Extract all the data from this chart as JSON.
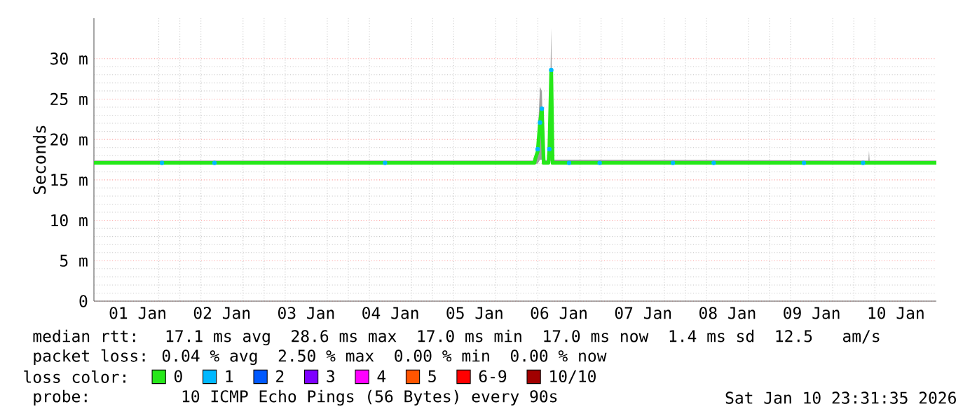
{
  "chart_data": {
    "type": "line",
    "ylabel": "Seconds",
    "xlim": [
      "2025-12-31T23:31",
      "2026-01-10T23:31"
    ],
    "xticks": [
      {
        "value": "2026-01-01T12:00",
        "label": "01 Jan"
      },
      {
        "value": "2026-01-02T12:00",
        "label": "02 Jan"
      },
      {
        "value": "2026-01-03T12:00",
        "label": "03 Jan"
      },
      {
        "value": "2026-01-04T12:00",
        "label": "04 Jan"
      },
      {
        "value": "2026-01-05T12:00",
        "label": "05 Jan"
      },
      {
        "value": "2026-01-06T12:00",
        "label": "06 Jan"
      },
      {
        "value": "2026-01-07T12:00",
        "label": "07 Jan"
      },
      {
        "value": "2026-01-08T12:00",
        "label": "08 Jan"
      },
      {
        "value": "2026-01-09T12:00",
        "label": "09 Jan"
      },
      {
        "value": "2026-01-10T12:00",
        "label": "10 Jan"
      }
    ],
    "ylim": [
      0,
      35
    ],
    "yticks": [
      {
        "value": 0,
        "label": "0"
      },
      {
        "value": 5,
        "label": "5 m"
      },
      {
        "value": 10,
        "label": "10 m"
      },
      {
        "value": 15,
        "label": "15 m"
      },
      {
        "value": 20,
        "label": "20 m"
      },
      {
        "value": 25,
        "label": "25 m"
      },
      {
        "value": 30,
        "label": "30 m"
      }
    ],
    "grid": true,
    "legend": "bottom",
    "legend_title": "loss color:",
    "marker": "none",
    "series": [
      {
        "name": "0",
        "color": "#26e81a",
        "x": [
          "2025-12-31T23:31",
          "2026-01-06T05:00",
          "2026-01-06T05:15",
          "2026-01-06T05:56",
          "2026-01-06T06:36",
          "2026-01-06T07:08",
          "2026-01-06T07:39",
          "2026-01-06T09:00",
          "2026-01-06T09:16",
          "2026-01-06T09:48",
          "2026-01-06T10:12",
          "2026-01-10T04:10",
          "2026-01-10T04:20",
          "2026-01-10T04:30",
          "2026-01-10T23:31"
        ],
        "values": [
          17.1,
          17.1,
          17.6,
          18.5,
          22.1,
          23.8,
          17.1,
          17.1,
          18.8,
          28.6,
          17.1,
          17.1,
          17.1,
          17.1,
          17.1
        ],
        "lower": [
          17.0,
          17.0,
          17.0,
          17.0,
          17.5,
          17.5,
          17.0,
          17.0,
          17.0,
          17.5,
          17.0,
          17.0,
          17.0,
          17.0,
          17.0
        ],
        "upper": [
          17.4,
          17.4,
          17.8,
          20.0,
          26.5,
          26.0,
          17.5,
          17.4,
          19.0,
          33.8,
          17.5,
          17.4,
          18.6,
          17.4,
          17.4
        ]
      },
      {
        "name": "1",
        "color": "#00b8ff",
        "type": "scatter",
        "x": [
          "2026-01-01T18:54",
          "2026-01-02T09:52",
          "2026-01-04T10:27",
          "2026-01-06T05:56",
          "2026-01-06T06:36",
          "2026-01-06T07:08",
          "2026-01-06T09:16",
          "2026-01-06T09:48",
          "2026-01-06T14:53",
          "2026-01-06T23:36",
          "2026-01-07T20:28",
          "2026-01-08T08:05",
          "2026-01-09T09:48",
          "2026-01-10T02:38"
        ],
        "values": [
          17.1,
          17.1,
          17.1,
          18.8,
          22.1,
          23.8,
          18.8,
          28.6,
          17.1,
          17.1,
          17.1,
          17.1,
          17.1,
          17.1
        ]
      },
      {
        "name": "2",
        "color": "#0059ff"
      },
      {
        "name": "3",
        "color": "#7e00ff"
      },
      {
        "name": "4",
        "color": "#ff00ff"
      },
      {
        "name": "5",
        "color": "#ff5500"
      },
      {
        "name": "6-9",
        "color": "#ff0000"
      },
      {
        "name": "10/10",
        "color": "#a10000"
      }
    ],
    "annotations": [
      "median rtt:  17.1 ms avg  28.6 ms max  17.0 ms min  17.0 ms now  1.4 ms sd  12.5   am/s",
      "packet loss: 0.04 % avg  2.50 % max  0.00 % min  0.00 % now",
      "probe:       10 ICMP Echo Pings (56 Bytes) every 90s",
      "Sat Jan 10 23:31:35 2026"
    ]
  }
}
